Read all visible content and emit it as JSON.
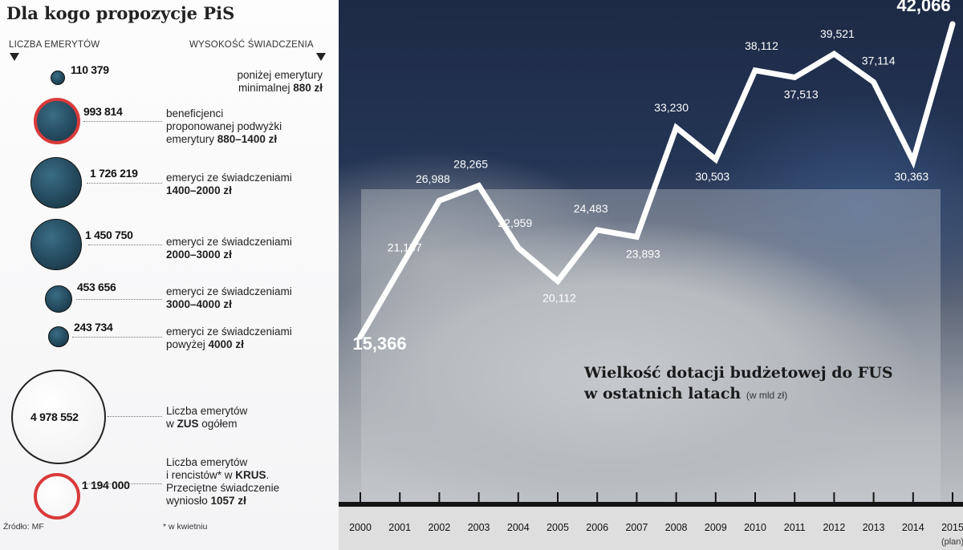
{
  "left_panel": {
    "title": "Dla kogo propozycje PiS",
    "col_left": "LICZBA EMERYTÓW",
    "col_right": "WYSOKOŚĆ ŚWIADCZENIA",
    "rows": [
      {
        "value": "110 379",
        "style": "blue",
        "lines": [
          [
            "poniżej emerytury",
            ""
          ],
          [
            "minimalnej ",
            "880 zł"
          ]
        ]
      },
      {
        "value": "993 814",
        "style": "blue-red-ring",
        "lines": [
          [
            "beneficjenci",
            ""
          ],
          [
            "proponowanej podwyżki",
            ""
          ],
          [
            "emerytury ",
            "880–1400 zł"
          ]
        ]
      },
      {
        "value": "1 726 219",
        "style": "blue",
        "lines": [
          [
            "emeryci ze świadczeniami",
            ""
          ],
          [
            "",
            "1400–2000 zł"
          ]
        ]
      },
      {
        "value": "1 450 750",
        "style": "blue",
        "lines": [
          [
            "emeryci ze świadczeniami",
            ""
          ],
          [
            "",
            "2000–3000 zł"
          ]
        ]
      },
      {
        "value": "453 656",
        "style": "blue",
        "lines": [
          [
            "emeryci ze świadczeniami",
            ""
          ],
          [
            "",
            "3000–4000 zł"
          ]
        ]
      },
      {
        "value": "243 734",
        "style": "blue",
        "lines": [
          [
            "emeryci ze świadczeniami",
            ""
          ],
          [
            "powyżej ",
            "4000 zł"
          ]
        ]
      },
      {
        "value": "4 978 552",
        "style": "white",
        "lines": [
          [
            "Liczba emerytów",
            ""
          ],
          [
            "w ",
            "ZUS",
            " ogółem"
          ]
        ]
      },
      {
        "value": "1 194 000",
        "style": "white-red-ring",
        "lines": [
          [
            "Liczba emerytów",
            ""
          ],
          [
            "i rencistów* w ",
            "KRUS",
            "."
          ],
          [
            "Przeciętne świadczenie",
            ""
          ],
          [
            "wyniosło ",
            "1057 zł"
          ]
        ]
      }
    ],
    "source": "Źródło: MF",
    "footnote": "* w kwietniu"
  },
  "chart_data": {
    "type": "line",
    "title_line1": "Wielkość dotacji budżetowej do FUS",
    "title_line2": "w ostatnich latach",
    "unit": "(w mld zł)",
    "x": [
      "2000",
      "2001",
      "2002",
      "2003",
      "2004",
      "2005",
      "2006",
      "2007",
      "2008",
      "2009",
      "2010",
      "2011",
      "2012",
      "2013",
      "2014",
      "2015"
    ],
    "x_sublabel_last": "(plan)",
    "values": [
      15.366,
      21.157,
      26.988,
      28.265,
      22.959,
      20.112,
      24.483,
      23.893,
      33.23,
      30.503,
      38.112,
      37.513,
      39.521,
      37.114,
      30.363,
      42.066
    ],
    "value_labels": [
      "15,366",
      "21,157",
      "26,988",
      "28,265",
      "22,959",
      "20,112",
      "24,483",
      "23,893",
      "33,230",
      "30,503",
      "38,112",
      "37,513",
      "39,521",
      "37,114",
      "30,363",
      "42,066"
    ],
    "line_color": "#ffffff"
  }
}
